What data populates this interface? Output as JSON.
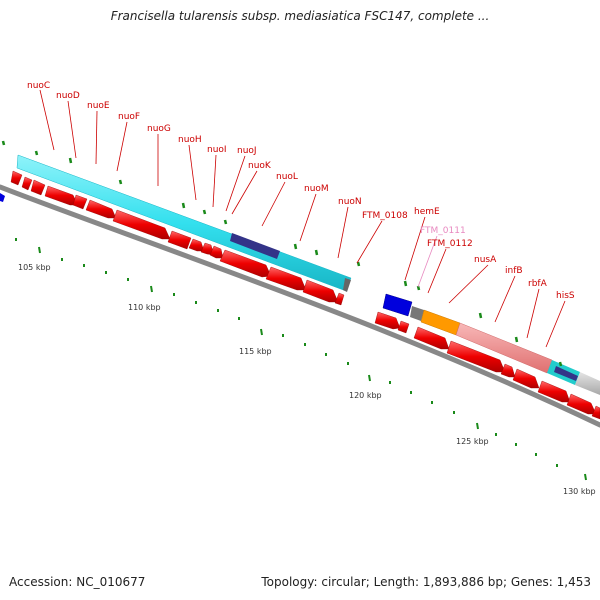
{
  "title": "Francisella tularensis subsp. mediasiatica FSC147, complete ...",
  "footer": {
    "accession": "Accession: NC_010677",
    "summary": "Topology: circular; Length: 1,893,886 bp; Genes: 1,453"
  },
  "ticks": [
    "105 kbp",
    "110 kbp",
    "115 kbp",
    "120 kbp",
    "125 kbp",
    "130 kbp"
  ],
  "genes": [
    {
      "name": "nuoC",
      "color": "#cc0000"
    },
    {
      "name": "nuoD",
      "color": "#cc0000"
    },
    {
      "name": "nuoE",
      "color": "#cc0000"
    },
    {
      "name": "nuoF",
      "color": "#cc0000"
    },
    {
      "name": "nuoG",
      "color": "#cc0000"
    },
    {
      "name": "nuoH",
      "color": "#cc0000"
    },
    {
      "name": "nuoI",
      "color": "#cc0000"
    },
    {
      "name": "nuoJ",
      "color": "#cc0000"
    },
    {
      "name": "nuoK",
      "color": "#cc0000"
    },
    {
      "name": "nuoL",
      "color": "#cc0000"
    },
    {
      "name": "nuoM",
      "color": "#cc0000"
    },
    {
      "name": "nuoN",
      "color": "#cc0000"
    },
    {
      "name": "FTM_0108",
      "color": "#cc0000"
    },
    {
      "name": "hemE",
      "color": "#cc0000"
    },
    {
      "name": "FTM_0111",
      "color": "#e889c0"
    },
    {
      "name": "FTM_0112",
      "color": "#cc0000"
    },
    {
      "name": "nusA",
      "color": "#cc0000"
    },
    {
      "name": "infB",
      "color": "#cc0000"
    },
    {
      "name": "rbfA",
      "color": "#cc0000"
    },
    {
      "name": "hisS",
      "color": "#cc0000"
    }
  ],
  "colors": {
    "cds": "#ee0000",
    "backbone": "#888888",
    "tick": "#1a8a1a",
    "feature_cyan": "#33e0ee",
    "feature_navy": "#333388",
    "feature_blue": "#0000dd",
    "feature_orange": "#ff9900",
    "feature_pink": "#ee8888",
    "feature_gray": "#bbbbbb"
  }
}
